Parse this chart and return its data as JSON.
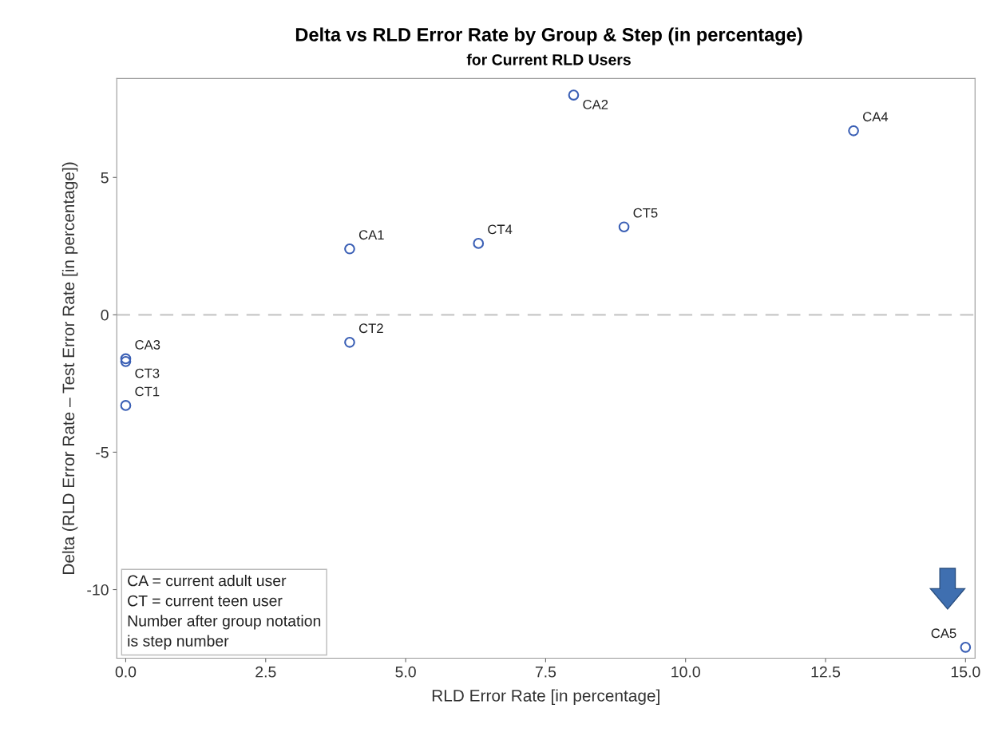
{
  "chart_data": {
    "type": "scatter",
    "title": "Delta vs RLD Error Rate by Group & Step (in percentage)",
    "subtitle": "for Current RLD Users",
    "xlabel": "RLD Error Rate [in percentage]",
    "ylabel": "Delta (RLD Error Rate – Test Error Rate [in percentage])",
    "x": [
      4.0,
      8.0,
      0.0,
      13.0,
      15.0,
      0.0,
      4.0,
      0.0,
      6.3,
      8.9
    ],
    "series": [
      {
        "color": "#3a5fb5",
        "values": [
          2.4,
          8.0,
          -1.6,
          6.7,
          -12.1,
          -3.3,
          -1.0,
          -1.7,
          2.6,
          3.2
        ]
      }
    ],
    "annotations": [
      {
        "text": "CA1",
        "x": 4.0,
        "y": 2.4
      },
      {
        "text": "CA2",
        "x": 8.0,
        "y": 8.0
      },
      {
        "text": "CA3",
        "x": 0.0,
        "y": -1.6
      },
      {
        "text": "CA4",
        "x": 13.0,
        "y": 6.7
      },
      {
        "text": "CA5",
        "x": 15.0,
        "y": -12.1
      },
      {
        "text": "CT1",
        "x": 0.0,
        "y": -3.3
      },
      {
        "text": "CT2",
        "x": 4.0,
        "y": -1.0
      },
      {
        "text": "CT3",
        "x": 0.0,
        "y": -1.7
      },
      {
        "text": "CT4",
        "x": 6.3,
        "y": 2.6
      },
      {
        "text": "CT5",
        "x": 8.9,
        "y": 3.2
      },
      "CA = current adult user\nCT = current teen user\nNumber after group notation\nis step number"
    ],
    "ref_lines": [
      {
        "axis": "y",
        "value": 0,
        "color": "#c8c8c8",
        "line_style": "dashed"
      }
    ],
    "xlim": [
      -0.16,
      15.17
    ],
    "ylim": [
      -12.5,
      8.6
    ],
    "xticks": [
      {
        "value": 0,
        "label": "0.0"
      },
      {
        "value": 2.5,
        "label": "2.5"
      },
      {
        "value": 5,
        "label": "5.0"
      },
      {
        "value": 7.5,
        "label": "7.5"
      },
      {
        "value": 10,
        "label": "10.0"
      },
      {
        "value": 12.5,
        "label": "12.5"
      },
      {
        "value": 15,
        "label": "15.0"
      }
    ],
    "yticks": [
      -10,
      -5,
      0,
      5
    ],
    "marker": "circle",
    "grid": false,
    "legend": false
  }
}
